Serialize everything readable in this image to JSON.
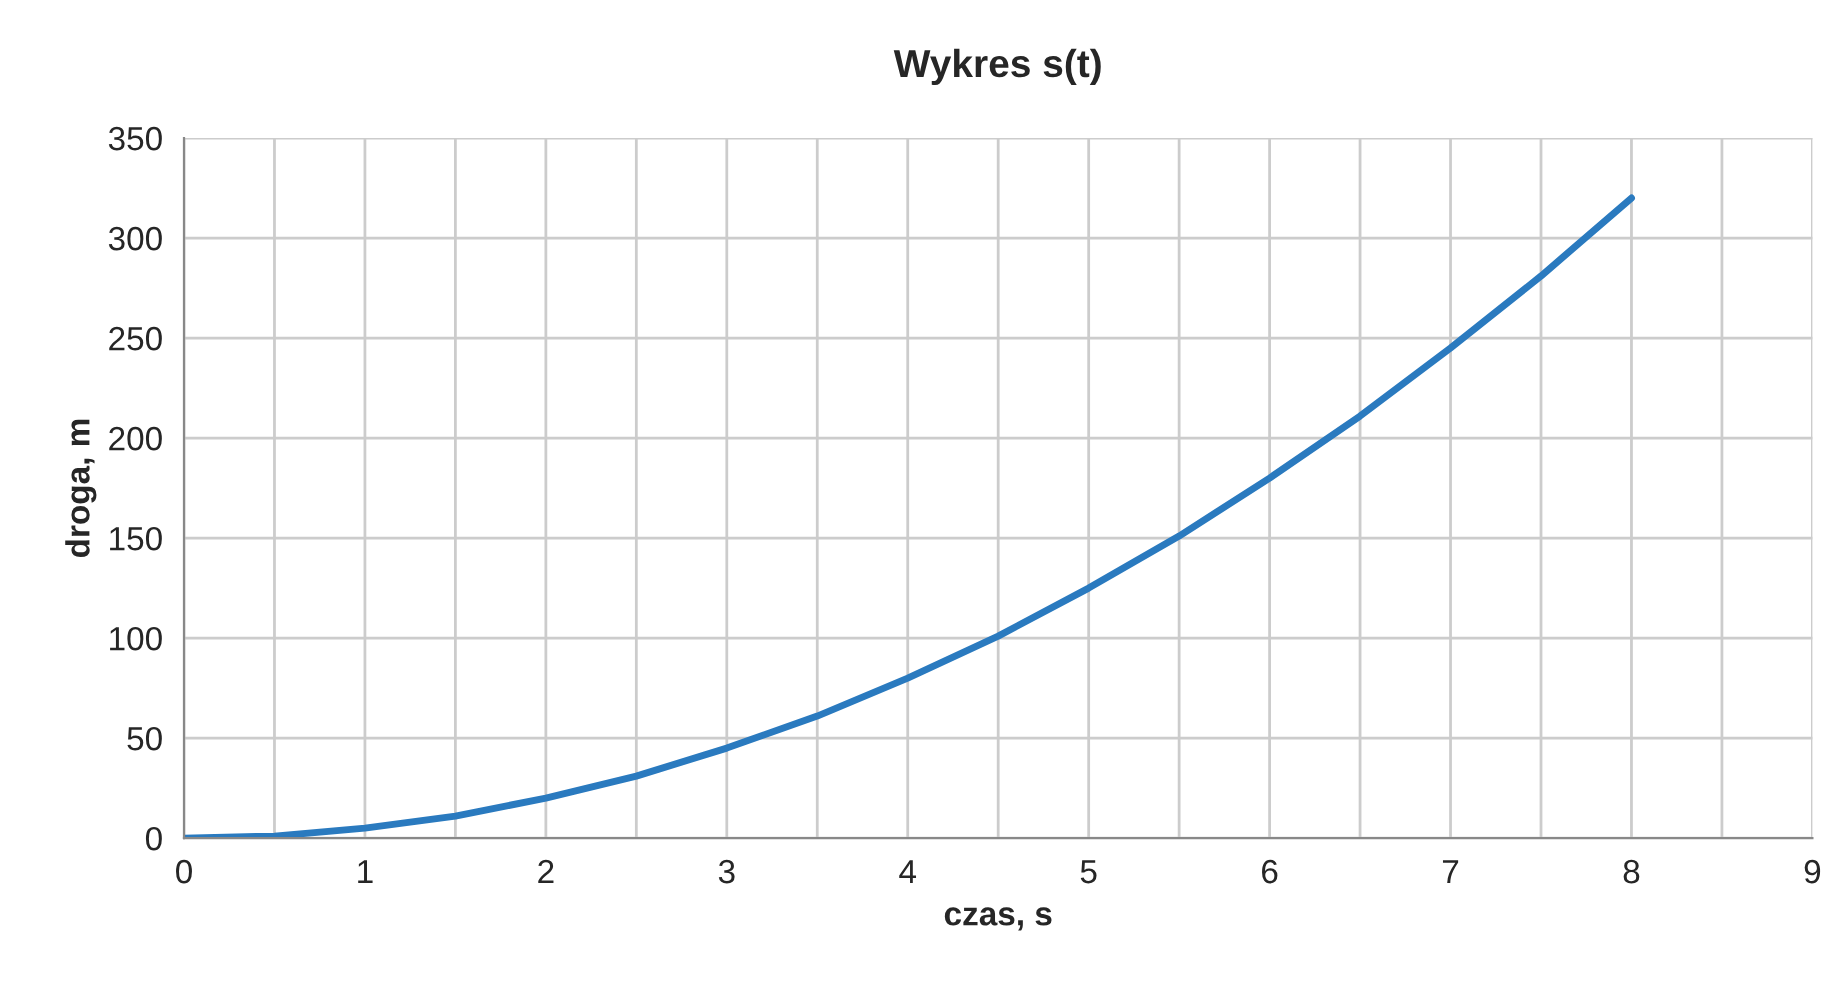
{
  "chart_data": {
    "type": "line",
    "title": "Wykres s(t)",
    "xlabel": "czas, s",
    "ylabel": "droga, m",
    "x": [
      0,
      0.5,
      1,
      1.5,
      2,
      2.5,
      3,
      3.5,
      4,
      4.5,
      5,
      5.5,
      6,
      6.5,
      7,
      7.5,
      8
    ],
    "series": [
      {
        "color": "#2a7abf",
        "values": [
          0,
          1,
          5,
          11,
          20,
          31,
          45,
          61,
          80,
          101,
          125,
          151,
          180,
          211,
          245,
          281,
          320
        ]
      }
    ],
    "xlim": [
      0,
      9
    ],
    "xticks": [
      0,
      1,
      2,
      3,
      4,
      5,
      6,
      7,
      8,
      9
    ],
    "ylim": [
      0,
      350
    ],
    "yticks": [
      0,
      50,
      100,
      150,
      200,
      250,
      300,
      350
    ],
    "grid": true,
    "marker": "none",
    "line_style": "solid"
  }
}
